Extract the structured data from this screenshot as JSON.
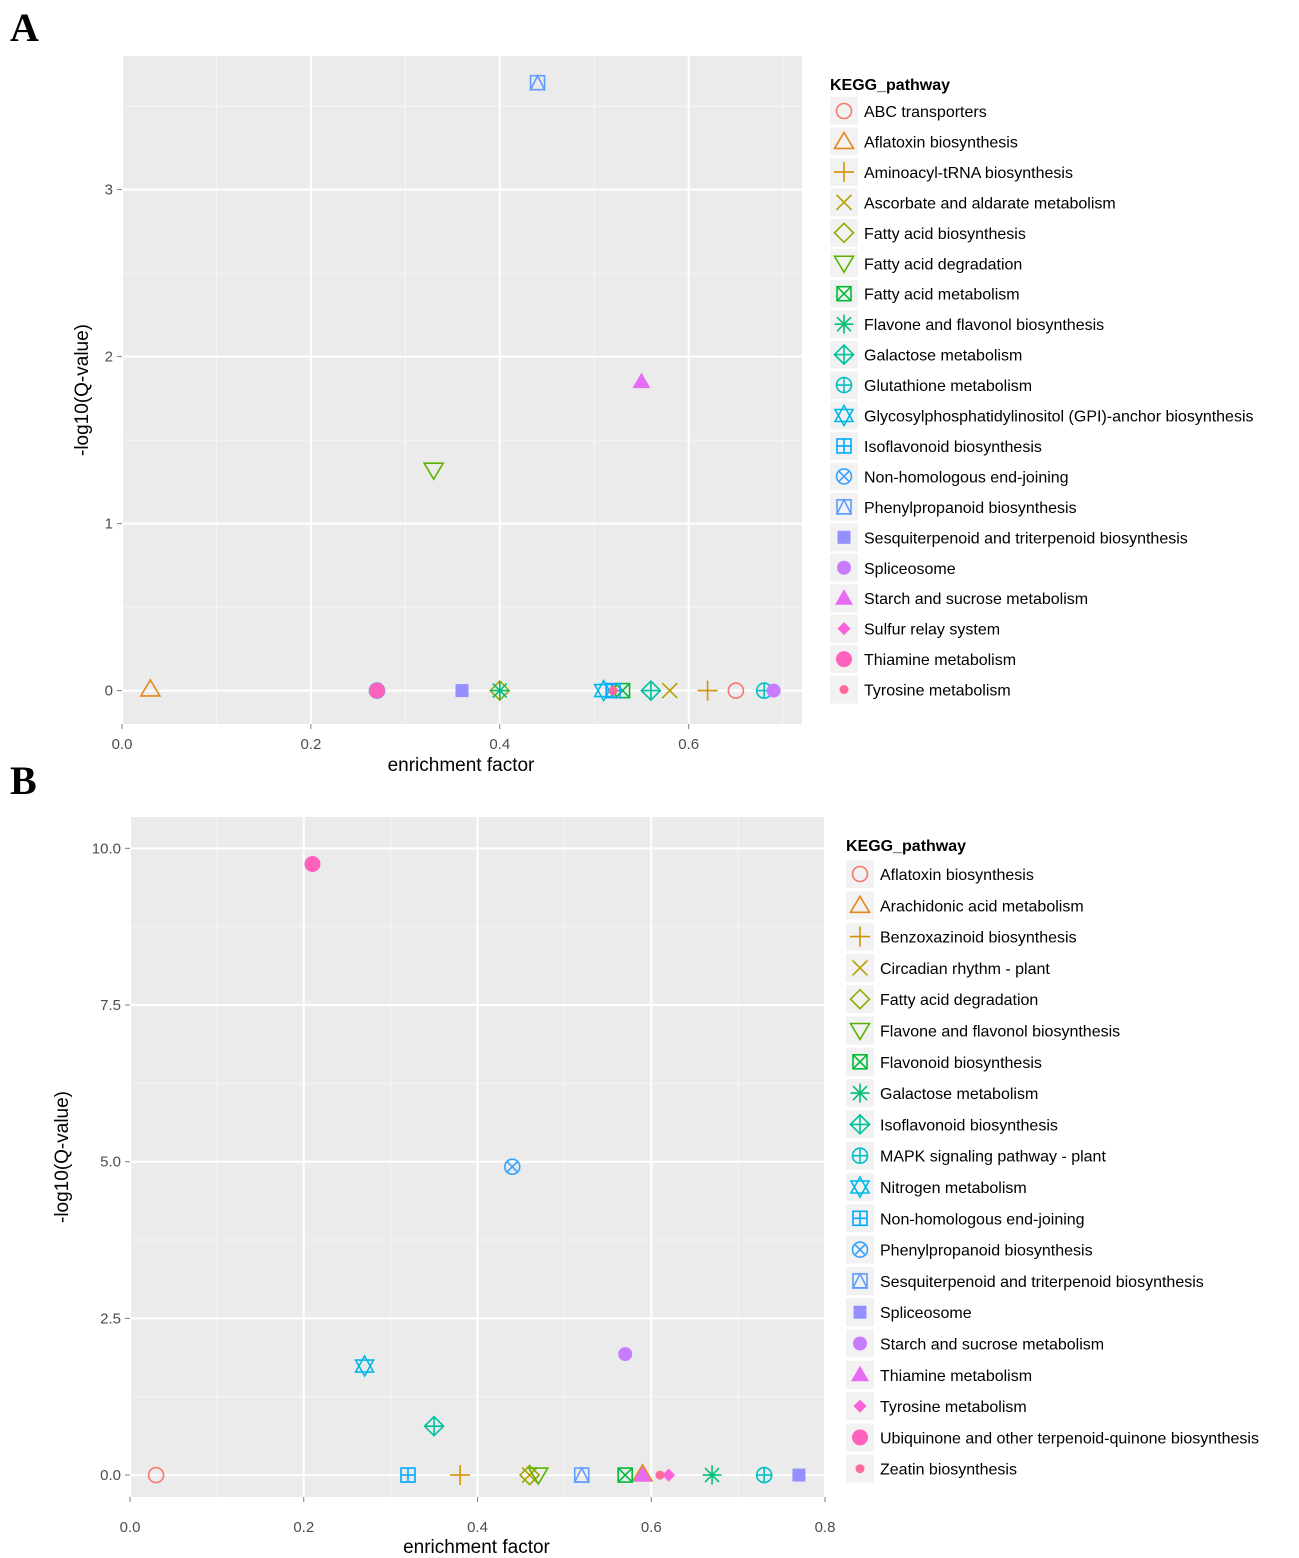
{
  "panels": [
    {
      "label": "A",
      "chart_data": {
        "type": "scatter",
        "xlabel": "enrichment factor",
        "ylabel": "-log10(Q-value)",
        "xlim": [
          0.0,
          0.72
        ],
        "ylim": [
          -0.2,
          3.8
        ],
        "xticks": [
          0.0,
          0.2,
          0.4,
          0.6
        ],
        "xtick_labels": [
          "0.0",
          "0.2",
          "0.4",
          "0.6"
        ],
        "yticks": [
          0,
          1,
          2,
          3
        ],
        "ytick_labels": [
          "0",
          "1",
          "2",
          "3"
        ],
        "grid": true,
        "legend_title": "KEGG_pathway",
        "legend_placement": "right",
        "series": [
          {
            "name": "ABC transporters",
            "shape": "circle-open",
            "color": "#F8766D",
            "x": 0.65,
            "y": 0.0
          },
          {
            "name": "Aflatoxin biosynthesis",
            "shape": "triangle-open",
            "color": "#E7861B",
            "x": 0.03,
            "y": 0.01
          },
          {
            "name": "Aminoacyl-tRNA biosynthesis",
            "shape": "plus",
            "color": "#D39200",
            "x": 0.62,
            "y": 0.0
          },
          {
            "name": "Ascorbate and aldarate metabolism",
            "shape": "cross",
            "color": "#B79F00",
            "x": 0.58,
            "y": 0.0
          },
          {
            "name": "Fatty acid biosynthesis",
            "shape": "diamond-open",
            "color": "#93AA00",
            "x": 0.4,
            "y": 0.0
          },
          {
            "name": "Fatty acid degradation",
            "shape": "triangle-down-open",
            "color": "#5BB300",
            "x": 0.33,
            "y": 1.32
          },
          {
            "name": "Fatty acid metabolism",
            "shape": "square-cross",
            "color": "#00BA38",
            "x": 0.53,
            "y": 0.0
          },
          {
            "name": "Flavone and flavonol biosynthesis",
            "shape": "asterisk",
            "color": "#00BF74",
            "x": 0.4,
            "y": 0.0
          },
          {
            "name": "Galactose metabolism",
            "shape": "diamond-plus",
            "color": "#00C19F",
            "x": 0.56,
            "y": 0.0
          },
          {
            "name": "Glutathione metabolism",
            "shape": "circle-plus",
            "color": "#00BFC4",
            "x": 0.68,
            "y": 0.0
          },
          {
            "name": "Glycosylphosphatidylinositol (GPI)-anchor biosynthesis",
            "shape": "star-of-david",
            "color": "#00B8E7",
            "x": 0.51,
            "y": 0.0
          },
          {
            "name": "Isoflavonoid biosynthesis",
            "shape": "square-plus",
            "color": "#00A9FF",
            "x": 0.52,
            "y": 0.0
          },
          {
            "name": "Non-homologous end-joining",
            "shape": "circle-cross",
            "color": "#35A2FF",
            "x": 0.27,
            "y": 0.0
          },
          {
            "name": "Phenylpropanoid biosynthesis",
            "shape": "square-triangle",
            "color": "#619CFF",
            "x": 0.44,
            "y": 3.64
          },
          {
            "name": "Sesquiterpenoid and triterpenoid biosynthesis",
            "shape": "square",
            "color": "#9590FF",
            "x": 0.36,
            "y": 0.0
          },
          {
            "name": "Spliceosome",
            "shape": "circle",
            "color": "#C77CFF",
            "x": 0.69,
            "y": 0.0
          },
          {
            "name": "Starch and sucrose metabolism",
            "shape": "triangle",
            "color": "#E76BF3",
            "x": 0.55,
            "y": 1.85
          },
          {
            "name": "Sulfur relay system",
            "shape": "diamond",
            "color": "#FA62DB",
            "x": 0.27,
            "y": 0.0
          },
          {
            "name": "Thiamine metabolism",
            "shape": "circle-large",
            "color": "#FF62BC",
            "x": 0.27,
            "y": 0.0
          },
          {
            "name": "Tyrosine metabolism",
            "shape": "circle-small",
            "color": "#FF6A98",
            "x": 0.52,
            "y": 0.0
          }
        ]
      }
    },
    {
      "label": "B",
      "chart_data": {
        "type": "scatter",
        "xlabel": "enrichment factor",
        "ylabel": "-log10(Q-value)",
        "xlim": [
          0.0,
          0.8
        ],
        "ylim": [
          -0.35,
          10.5
        ],
        "xticks": [
          0.0,
          0.2,
          0.4,
          0.6,
          0.8
        ],
        "xtick_labels": [
          "0.0",
          "0.2",
          "0.4",
          "0.6",
          "0.8"
        ],
        "yticks": [
          0.0,
          2.5,
          5.0,
          7.5,
          10.0
        ],
        "ytick_labels": [
          "0.0",
          "2.5",
          "5.0",
          "7.5",
          "10.0"
        ],
        "grid": true,
        "legend_title": "KEGG_pathway",
        "legend_placement": "right",
        "series": [
          {
            "name": "Aflatoxin biosynthesis",
            "shape": "circle-open",
            "color": "#F8766D",
            "x": 0.03,
            "y": 0.0
          },
          {
            "name": "Arachidonic acid metabolism",
            "shape": "triangle-open",
            "color": "#E7861B",
            "x": 0.59,
            "y": 0.02
          },
          {
            "name": "Benzoxazinoid biosynthesis",
            "shape": "plus",
            "color": "#D39200",
            "x": 0.38,
            "y": 0.0
          },
          {
            "name": "Circadian rhythm - plant",
            "shape": "cross",
            "color": "#B79F00",
            "x": 0.46,
            "y": 0.0
          },
          {
            "name": "Fatty acid degradation",
            "shape": "diamond-open",
            "color": "#93AA00",
            "x": 0.46,
            "y": 0.0
          },
          {
            "name": "Flavone and flavonol biosynthesis",
            "shape": "triangle-down-open",
            "color": "#5BB300",
            "x": 0.47,
            "y": 0.0
          },
          {
            "name": "Flavonoid biosynthesis",
            "shape": "square-cross",
            "color": "#00BA38",
            "x": 0.57,
            "y": 0.0
          },
          {
            "name": "Galactose metabolism",
            "shape": "asterisk",
            "color": "#00BF74",
            "x": 0.67,
            "y": 0.0
          },
          {
            "name": "Isoflavonoid biosynthesis",
            "shape": "diamond-plus",
            "color": "#00C19F",
            "x": 0.35,
            "y": 0.78
          },
          {
            "name": "MAPK signaling pathway - plant",
            "shape": "circle-plus",
            "color": "#00BFC4",
            "x": 0.73,
            "y": 0.0
          },
          {
            "name": "Nitrogen metabolism",
            "shape": "star-of-david",
            "color": "#00B8E7",
            "x": 0.27,
            "y": 1.74
          },
          {
            "name": "Non-homologous end-joining",
            "shape": "square-plus",
            "color": "#00A9FF",
            "x": 0.32,
            "y": 0.0
          },
          {
            "name": "Phenylpropanoid biosynthesis",
            "shape": "circle-cross",
            "color": "#35A2FF",
            "x": 0.44,
            "y": 4.92
          },
          {
            "name": "Sesquiterpenoid and triterpenoid biosynthesis",
            "shape": "square-triangle",
            "color": "#619CFF",
            "x": 0.52,
            "y": 0.0
          },
          {
            "name": "Spliceosome",
            "shape": "square",
            "color": "#9590FF",
            "x": 0.77,
            "y": 0.0
          },
          {
            "name": "Starch and sucrose metabolism",
            "shape": "circle",
            "color": "#C77CFF",
            "x": 0.57,
            "y": 1.93
          },
          {
            "name": "Thiamine metabolism",
            "shape": "triangle",
            "color": "#E76BF3",
            "x": 0.59,
            "y": 0.0
          },
          {
            "name": "Tyrosine metabolism",
            "shape": "diamond",
            "color": "#FA62DB",
            "x": 0.62,
            "y": 0.0
          },
          {
            "name": "Ubiquinone and other terpenoid-quinone biosynthesis",
            "shape": "circle-large",
            "color": "#FF62BC",
            "x": 0.21,
            "y": 9.75
          },
          {
            "name": "Zeatin biosynthesis",
            "shape": "circle-small",
            "color": "#FF6A98",
            "x": 0.61,
            "y": 0.0
          }
        ]
      }
    }
  ],
  "colors": {
    "panel_bg": "#EBEBEB",
    "grid": "#FFFFFF",
    "tick_text": "#4D4D4D",
    "axis_text": "#000000"
  }
}
